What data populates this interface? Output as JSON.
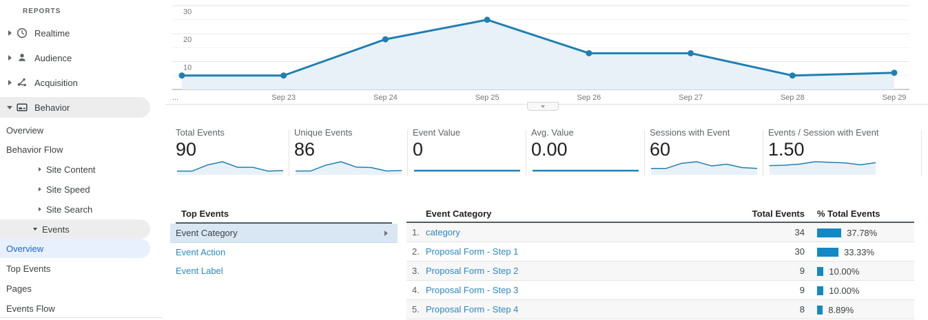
{
  "colors": {
    "chart_line": "#1f7fb3",
    "chart_fill": "#e8f1f8",
    "bar_blue": "#1289c4",
    "link_blue": "#2b87c3",
    "nav_selected_text": "#1967d2",
    "nav_selected_bg": "#e8f0fe",
    "nav_section_bg": "#ededee",
    "list_selected_bg": "#d9e7f5"
  },
  "sidebar": {
    "section_label": "REPORTS",
    "items": {
      "realtime": "Realtime",
      "audience": "Audience",
      "acquisition": "Acquisition",
      "behavior": "Behavior",
      "behavior_overview": "Overview",
      "behavior_flow": "Behavior Flow",
      "site_content": "Site Content",
      "site_speed": "Site Speed",
      "site_search": "Site Search",
      "events": "Events",
      "events_overview": "Overview",
      "top_events": "Top Events",
      "pages": "Pages",
      "events_flow": "Events Flow"
    }
  },
  "chart_data": {
    "type": "line",
    "x_tick_labels": [
      "...",
      "Sep 23",
      "Sep 24",
      "Sep 25",
      "Sep 26",
      "Sep 27",
      "Sep 28",
      "Sep 29"
    ],
    "values": [
      5,
      5,
      18,
      25,
      13,
      13,
      5,
      6
    ],
    "ylim": [
      0,
      32
    ],
    "yticks": [
      10,
      20,
      30
    ],
    "grid_step": 5,
    "grid": true,
    "legend": "none",
    "title": "",
    "xlabel": "",
    "ylabel": ""
  },
  "metrics": [
    {
      "label": "Total Events",
      "value": "90",
      "spark": [
        5,
        5,
        18,
        25,
        13,
        13,
        5,
        6
      ]
    },
    {
      "label": "Unique Events",
      "value": "86",
      "spark": [
        5,
        5,
        17,
        24,
        13,
        12,
        5,
        6
      ]
    },
    {
      "label": "Event Value",
      "value": "0",
      "spark": [
        0,
        0,
        0,
        0,
        0,
        0,
        0,
        0
      ]
    },
    {
      "label": "Avg. Value",
      "value": "0.00",
      "spark": [
        0,
        0,
        0,
        0,
        0,
        0,
        0,
        0
      ]
    },
    {
      "label": "Sessions with Event",
      "value": "60",
      "spark": [
        3,
        3,
        6,
        7,
        4.5,
        5.5,
        3.5,
        3
      ]
    },
    {
      "label": "Events / Session with Event",
      "value": "1.50",
      "spark": [
        1.0,
        1.05,
        1.2,
        1.5,
        1.42,
        1.35,
        1.1,
        1.38
      ]
    }
  ],
  "top_events_panel": {
    "title": "Top Events",
    "items": [
      {
        "label": "Event Category"
      },
      {
        "label": "Event Action"
      },
      {
        "label": "Event Label"
      }
    ]
  },
  "table": {
    "headers": {
      "category": "Event Category",
      "total": "Total Events",
      "pct": "% Total Events"
    },
    "rows": [
      {
        "rank": "1.",
        "category": "category",
        "total": "34",
        "pct": 37.78,
        "pct_label": "37.78%"
      },
      {
        "rank": "2.",
        "category": "Proposal Form - Step 1",
        "total": "30",
        "pct": 33.33,
        "pct_label": "33.33%"
      },
      {
        "rank": "3.",
        "category": "Proposal Form - Step 2",
        "total": "9",
        "pct": 10.0,
        "pct_label": "10.00%"
      },
      {
        "rank": "4.",
        "category": "Proposal Form - Step 3",
        "total": "9",
        "pct": 10.0,
        "pct_label": "10.00%"
      },
      {
        "rank": "5.",
        "category": "Proposal Form - Step 4",
        "total": "8",
        "pct": 8.89,
        "pct_label": "8.89%"
      }
    ]
  }
}
